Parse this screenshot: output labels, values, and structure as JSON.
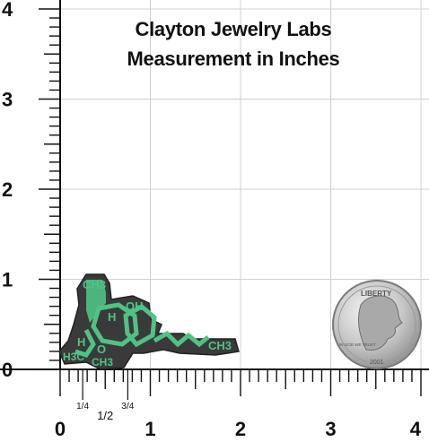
{
  "header": {
    "title_line1": "Clayton Jewelry Labs",
    "title_line2": "Measurement in Inches"
  },
  "ruler": {
    "x_labels": [
      "0",
      "1",
      "2",
      "3",
      "4"
    ],
    "y_labels": [
      "0",
      "1",
      "2",
      "3",
      "4"
    ],
    "fraction_labels": [
      "1/4",
      "1/2",
      "3/4"
    ]
  },
  "pin": {
    "labels": [
      "CH3",
      "H",
      "OH",
      "H",
      "O",
      "H3C",
      "CH3",
      "CH3"
    ]
  },
  "coin": {
    "lettering": [
      "LIBERTY",
      "IN GOD WE TRUST",
      "2001"
    ]
  },
  "colors": {
    "grid": "#d0d0d0",
    "ruler": "#111111",
    "pin_metal": "#3a3a3a",
    "pin_enamel": "#4fc285",
    "coin": "#c8c8c8"
  }
}
